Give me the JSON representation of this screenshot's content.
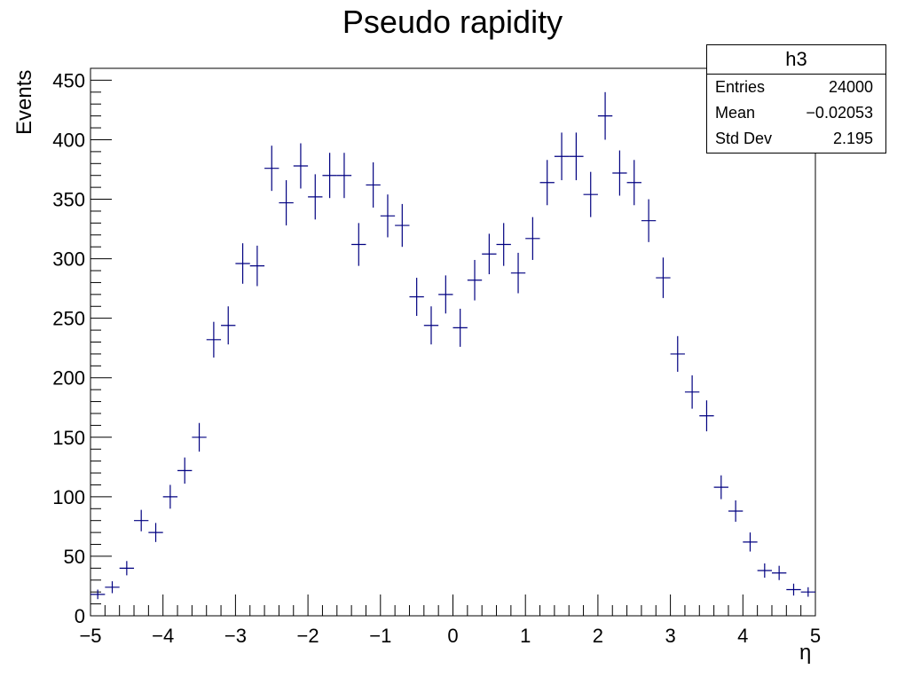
{
  "chart_data": {
    "type": "scatter",
    "title": "Pseudo rapidity",
    "xlabel": "η",
    "ylabel": "Events",
    "xlim": [
      -5,
      5
    ],
    "ylim": [
      0,
      460
    ],
    "x_ticks": [
      -5,
      -4,
      -3,
      -2,
      -1,
      0,
      1,
      2,
      3,
      4,
      5
    ],
    "x_tick_labels": [
      "−5",
      "−4",
      "−3",
      "−2",
      "−1",
      "0",
      "1",
      "2",
      "3",
      "4",
      "5"
    ],
    "y_ticks": [
      0,
      50,
      100,
      150,
      200,
      250,
      300,
      350,
      400,
      450
    ],
    "y_tick_labels": [
      "0",
      "50",
      "100",
      "150",
      "200",
      "250",
      "300",
      "350",
      "400",
      "450"
    ],
    "grid": false,
    "marker_color": "#000080",
    "bin_width": 0.2,
    "series": [
      {
        "x": [
          -4.9,
          -4.7,
          -4.5,
          -4.3,
          -4.1,
          -3.9,
          -3.7,
          -3.5,
          -3.3,
          -3.1,
          -2.9,
          -2.7,
          -2.5,
          -2.3,
          -2.1,
          -1.9,
          -1.7,
          -1.5,
          -1.3,
          -1.1,
          -0.9,
          -0.7,
          -0.5,
          -0.3,
          -0.1,
          0.1,
          0.3,
          0.5,
          0.7,
          0.9,
          1.1,
          1.3,
          1.5,
          1.7,
          1.9,
          2.1,
          2.3,
          2.5,
          2.7,
          2.9,
          3.1,
          3.3,
          3.5,
          3.7,
          3.9,
          4.1,
          4.3,
          4.5,
          4.7,
          4.9
        ],
        "values": [
          18,
          24,
          40,
          80,
          70,
          100,
          122,
          150,
          232,
          244,
          296,
          294,
          376,
          347,
          378,
          352,
          370,
          370,
          312,
          362,
          336,
          328,
          268,
          244,
          270,
          242,
          282,
          304,
          312,
          288,
          317,
          364,
          386,
          386,
          354,
          420,
          372,
          364,
          332,
          284,
          220,
          188,
          168,
          108,
          88,
          62,
          38,
          36,
          22,
          20
        ],
        "errors": [
          4,
          5,
          6,
          9,
          8,
          10,
          11,
          12,
          15,
          16,
          17,
          17,
          19,
          19,
          19,
          19,
          19,
          19,
          18,
          19,
          18,
          18,
          16,
          16,
          16,
          16,
          17,
          17,
          18,
          17,
          18,
          19,
          20,
          20,
          19,
          20,
          19,
          19,
          18,
          17,
          15,
          14,
          13,
          10,
          9,
          8,
          6,
          6,
          5,
          4
        ]
      }
    ]
  },
  "stats_box": {
    "title": "h3",
    "entries_label": "Entries",
    "entries_value": "24000",
    "mean_label": "Mean",
    "mean_value": "−0.02053",
    "stddev_label": "Std Dev",
    "stddev_value": "2.195"
  }
}
